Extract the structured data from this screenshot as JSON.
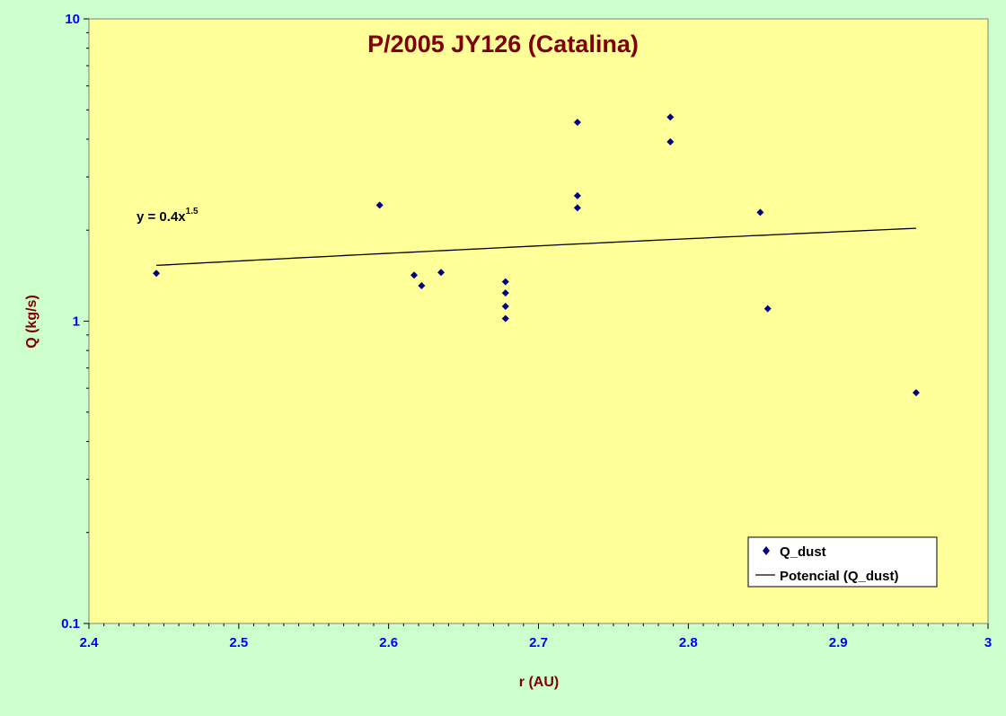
{
  "chart_data": {
    "type": "scatter",
    "title": "P/2005 JY126 (Catalina)",
    "xlabel": "r (AU)",
    "ylabel": "Q (kg/s)",
    "xlim": [
      2.4,
      3.0
    ],
    "ylim": [
      0.1,
      10
    ],
    "y_scale": "log",
    "x_ticks": [
      "2.4",
      "2.5",
      "2.6",
      "2.7",
      "2.8",
      "2.9",
      "3"
    ],
    "y_ticks": [
      "0.1",
      "1",
      "10"
    ],
    "grid": false,
    "legend_position": "bottom-right",
    "series": [
      {
        "name": "Q_dust",
        "marker": "diamond",
        "color": "#000080",
        "points": [
          {
            "x": 2.445,
            "y": 1.44
          },
          {
            "x": 2.594,
            "y": 2.42
          },
          {
            "x": 2.617,
            "y": 1.42
          },
          {
            "x": 2.622,
            "y": 1.31
          },
          {
            "x": 2.635,
            "y": 1.45
          },
          {
            "x": 2.678,
            "y": 1.35
          },
          {
            "x": 2.678,
            "y": 1.24
          },
          {
            "x": 2.678,
            "y": 1.12
          },
          {
            "x": 2.678,
            "y": 1.02
          },
          {
            "x": 2.726,
            "y": 4.55
          },
          {
            "x": 2.726,
            "y": 2.6
          },
          {
            "x": 2.726,
            "y": 2.37
          },
          {
            "x": 2.788,
            "y": 4.73
          },
          {
            "x": 2.788,
            "y": 3.92
          },
          {
            "x": 2.848,
            "y": 2.29
          },
          {
            "x": 2.853,
            "y": 1.1
          },
          {
            "x": 2.952,
            "y": 0.58
          }
        ]
      }
    ],
    "trendline": {
      "name": "Potencial (Q_dust)",
      "type": "power",
      "coefficient": 0.4,
      "exponent": 1.5,
      "x_range": [
        2.445,
        2.952
      ],
      "color": "#000000",
      "equation_label": "y = 0.4x",
      "equation_exponent": "1.5"
    },
    "colors": {
      "page_background": "#ccffcc",
      "plot_background": "#ffff99",
      "title": "#800000",
      "axis_label": "#800000",
      "tick_label": "#0000ff",
      "marker": "#000080"
    }
  }
}
